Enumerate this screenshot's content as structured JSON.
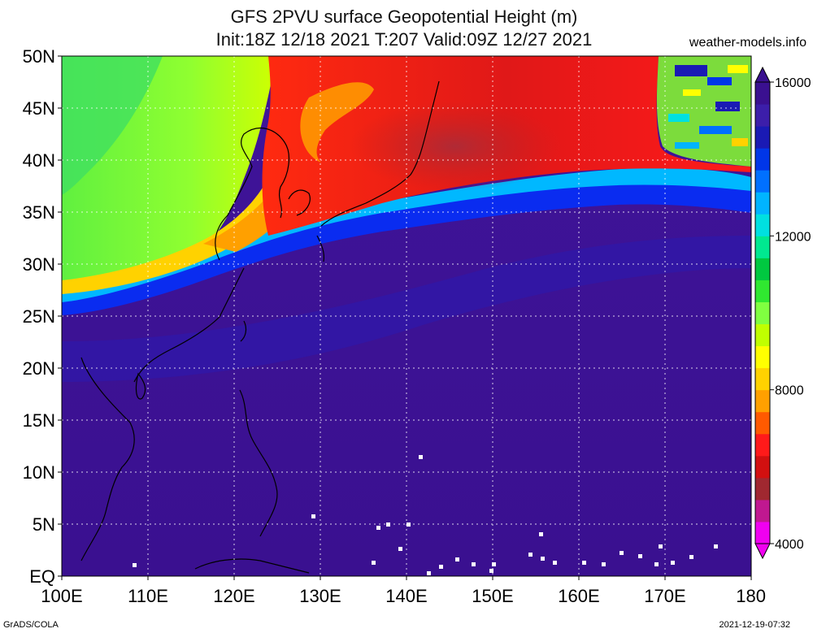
{
  "title_line1": "GFS 2PVU surface Geopotential Height (m)",
  "title_line2": "Init:18Z 12/18 2021 T:207 Valid:09Z 12/27 2021",
  "site": "weather-models.info",
  "footer_left": "GrADS/COLA",
  "footer_right": "2021-12-19-07:32",
  "lat_labels": [
    "50N",
    "45N",
    "40N",
    "35N",
    "30N",
    "25N",
    "20N",
    "15N",
    "10N",
    "5N",
    "EQ"
  ],
  "lon_labels": [
    "100E",
    "110E",
    "120E",
    "130E",
    "140E",
    "150E",
    "160E",
    "170E",
    "180"
  ],
  "colorbar": {
    "labels": [
      "16000",
      "12000",
      "8000",
      "4000"
    ],
    "colors": [
      "#f000f0",
      "#c01890",
      "#a02830",
      "#d21010",
      "#ff1a1a",
      "#ff5a00",
      "#ffa000",
      "#ffd200",
      "#ffff00",
      "#c0ff00",
      "#80ff40",
      "#30e830",
      "#00c840",
      "#00e890",
      "#00e0e0",
      "#00b4ff",
      "#0070ff",
      "#0036e8",
      "#1a1ab4",
      "#3c1eaa",
      "#3a1090"
    ]
  },
  "map": {
    "lat_range": [
      0,
      50
    ],
    "lon_range": [
      100,
      180
    ],
    "field": "2PVU surface geopotential height",
    "units": "m"
  }
}
